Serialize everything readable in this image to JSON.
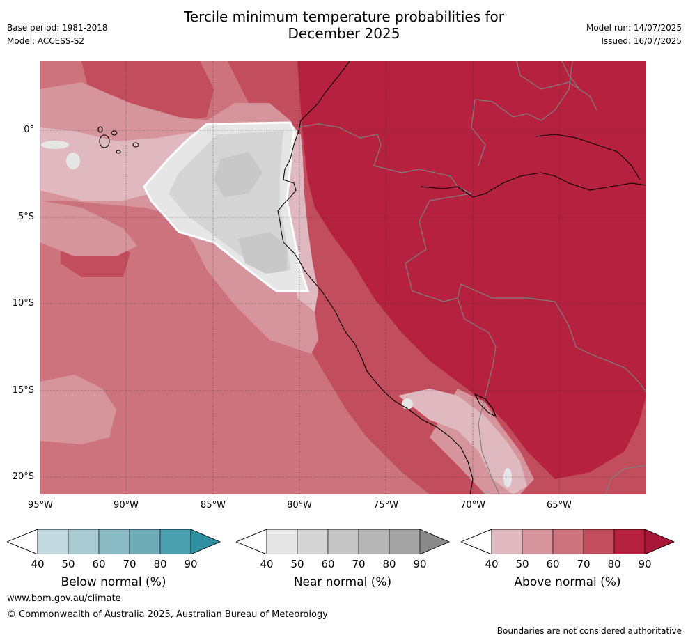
{
  "header": {
    "title_line1": "Tercile minimum temperature probabilities for",
    "title_line2": "December 2025",
    "base_period": "Base period: 1981-2018",
    "model": "Model: ACCESS-S2",
    "model_run": "Model run: 14/07/2025",
    "issued": "Issued: 16/07/2025"
  },
  "map": {
    "lat_ticks": [
      "0°",
      "5°S",
      "10°S",
      "15°S",
      "20°S"
    ],
    "lon_ticks": [
      "95°W",
      "90°W",
      "85°W",
      "80°W",
      "75°W",
      "70°W",
      "65°W"
    ],
    "colors": {
      "above_40": "#dfb9bf",
      "above_50": "#d6949c",
      "above_60": "#cc737d",
      "above_70": "#c24d5c",
      "above_80": "#b5213f",
      "near_40": "#e6e6e6",
      "near_50": "#d5d5d5",
      "near_60": "#c8c8c8",
      "coast": "#000000",
      "border": "#808080"
    }
  },
  "legends": [
    {
      "title": "Below normal (%)",
      "ticks": [
        "40",
        "50",
        "60",
        "70",
        "80",
        "90"
      ],
      "colors": [
        "#c1d9df",
        "#a8cbd2",
        "#8abac4",
        "#6eacb7",
        "#4aa0af",
        "#2e8fa1"
      ]
    },
    {
      "title": "Near normal (%)",
      "ticks": [
        "40",
        "50",
        "60",
        "70",
        "80",
        "90"
      ],
      "colors": [
        "#e6e6e6",
        "#d5d5d5",
        "#c6c6c6",
        "#b6b6b6",
        "#a3a3a3",
        "#8a8a8a"
      ]
    },
    {
      "title": "Above normal (%)",
      "ticks": [
        "40",
        "50",
        "60",
        "70",
        "80",
        "90"
      ],
      "colors": [
        "#dfb9bf",
        "#d6949c",
        "#cc737d",
        "#c24d5c",
        "#b5213f",
        "#a8173a"
      ]
    }
  ],
  "footer": {
    "url": "www.bom.gov.au/climate",
    "copyright": "© Commonwealth of Australia 2025, Australian Bureau of Meteorology",
    "disclaimer": "Boundaries are not considered authoritative"
  }
}
